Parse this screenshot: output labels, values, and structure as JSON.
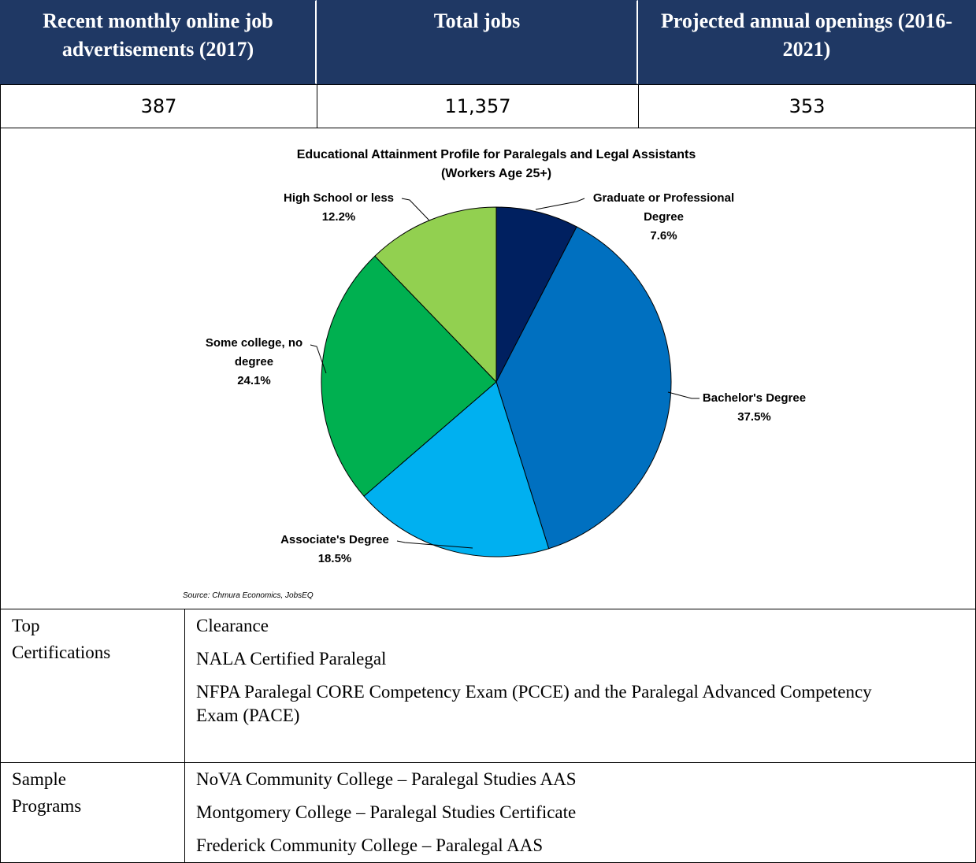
{
  "table": {
    "header": [
      "Recent monthly online job advertisements (2017)",
      "Total jobs",
      "Projected annual openings (2016-2021)"
    ],
    "values": [
      "387",
      "11,357",
      "353"
    ]
  },
  "chart_data": {
    "type": "pie",
    "title": "Educational Attainment Profile for Paralegals and Legal Assistants",
    "subtitle": "(Workers Age 25+)",
    "categories": [
      "Graduate or Professional Degree",
      "Bachelor's Degree",
      "Associate's Degree",
      "Some college, no degree",
      "High School or less"
    ],
    "values": [
      7.6,
      37.5,
      18.5,
      24.1,
      12.2
    ],
    "value_labels": [
      "7.6%",
      "37.5%",
      "18.5%",
      "24.1%",
      "12.2%"
    ],
    "colors": [
      "#002060",
      "#0070c0",
      "#00b0f0",
      "#00b050",
      "#92d050"
    ],
    "source": "Source: Chmura Economics, JobsEQ"
  },
  "details": {
    "rows": [
      {
        "label": "Top Certifications",
        "items": [
          "Clearance",
          "NALA Certified Paralegal",
          "NFPA Paralegal CORE Competency Exam (PCCE) and the Paralegal Advanced Competency Exam (PACE)"
        ]
      },
      {
        "label": "Sample Programs",
        "items": [
          "NoVA Community College – Paralegal Studies AAS",
          "Montgomery College – Paralegal Studies Certificate",
          "Frederick Community College – Paralegal AAS"
        ]
      }
    ]
  }
}
